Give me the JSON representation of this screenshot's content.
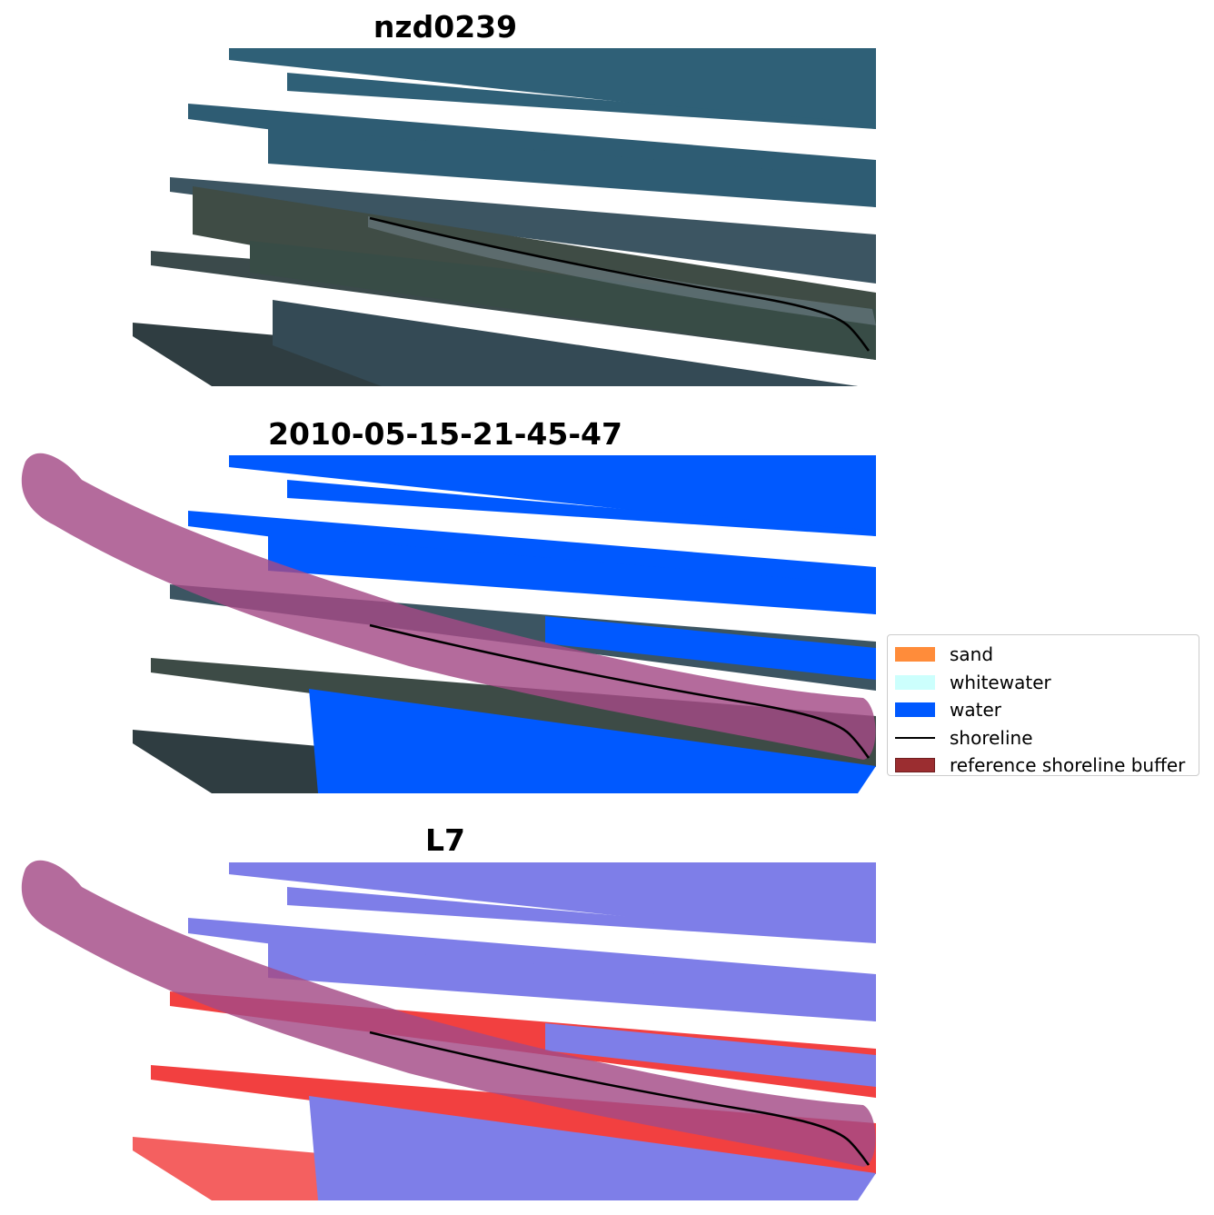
{
  "panels": [
    {
      "title": "nzd0239"
    },
    {
      "title": "2010-05-15-21-45-47"
    },
    {
      "title": "L7"
    }
  ],
  "legend": {
    "items": [
      {
        "label": "sand",
        "color": "#ff8c3a",
        "kind": "patch"
      },
      {
        "label": "whitewater",
        "color": "#ccfffd",
        "kind": "patch"
      },
      {
        "label": "water",
        "color": "#0059ff",
        "kind": "patch"
      },
      {
        "label": "shoreline",
        "color": "#000000",
        "kind": "line"
      },
      {
        "label": "reference shoreline buffer",
        "color": "#9b2d30",
        "kind": "patch"
      }
    ]
  },
  "colors": {
    "ocean_rgb": "#2e5c73",
    "land_rgb": "#3a4a45",
    "water_class": "#0059ff",
    "buffer": "#a34a86",
    "index_water": "#7e7ee8",
    "index_land": "#f24040"
  }
}
